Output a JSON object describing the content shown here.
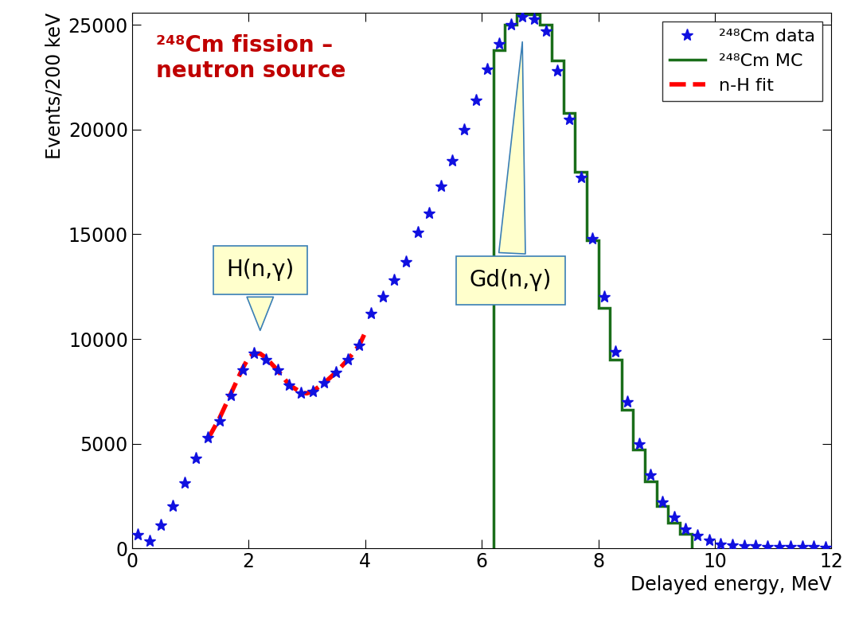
{
  "chart_data": {
    "type": "scatter",
    "title": "²⁴⁸Cm fission –\nneutron source",
    "x_label": "Delayed energy, MeV",
    "y_label": "Events/200 keV",
    "annotations": [
      "H(n,γ)",
      "Gd(n,γ)"
    ],
    "xlim": [
      0,
      12
    ],
    "ylim": [
      0,
      25600
    ],
    "xticks": [
      0,
      2,
      4,
      6,
      8,
      10,
      12
    ],
    "yticks": [
      0,
      5000,
      10000,
      15000,
      20000,
      25000
    ],
    "legend": "upper right",
    "series": [
      {
        "name": "²⁴⁸Cm data",
        "type": "scatter",
        "marker": "star",
        "color": "#1010e0",
        "x": [
          0.1,
          0.3,
          0.5,
          0.7,
          0.9,
          1.1,
          1.3,
          1.5,
          1.7,
          1.9,
          2.1,
          2.3,
          2.5,
          2.7,
          2.9,
          3.1,
          3.3,
          3.5,
          3.7,
          3.9,
          4.1,
          4.3,
          4.5,
          4.7,
          4.9,
          5.1,
          5.3,
          5.5,
          5.7,
          5.9,
          6.1,
          6.3,
          6.5,
          6.7,
          6.9,
          7.1,
          7.3,
          7.5,
          7.7,
          7.9,
          8.1,
          8.3,
          8.5,
          8.7,
          8.9,
          9.1,
          9.3,
          9.5,
          9.7,
          9.9,
          10.1,
          10.3,
          10.5,
          10.7,
          10.9,
          11.1,
          11.3,
          11.5,
          11.7,
          11.9
        ],
        "values": [
          650,
          350,
          1100,
          2000,
          3100,
          4300,
          5300,
          6100,
          7300,
          8500,
          9300,
          9000,
          8500,
          7800,
          7400,
          7500,
          7900,
          8400,
          9000,
          9700,
          11200,
          12000,
          12800,
          13700,
          15100,
          16000,
          17300,
          18500,
          20000,
          21400,
          22900,
          24100,
          25000,
          25400,
          25300,
          24700,
          22800,
          20500,
          17700,
          14800,
          12000,
          9400,
          7000,
          5000,
          3500,
          2200,
          1500,
          900,
          600,
          400,
          200,
          150,
          120,
          100,
          90,
          80,
          70,
          60,
          60,
          50
        ]
      },
      {
        "name": "²⁴⁸Cm MC",
        "type": "step",
        "color": "#1a6e1a",
        "bins": [
          6.2,
          6.4,
          6.6,
          6.8,
          7.0,
          7.2,
          7.4,
          7.6,
          7.8,
          8.0,
          8.2,
          8.4,
          8.6,
          8.8,
          9.0,
          9.2,
          9.4,
          9.6
        ],
        "values": [
          23800,
          25000,
          25500,
          25500,
          25000,
          23300,
          20800,
          18000,
          14700,
          11500,
          9000,
          6600,
          4700,
          3200,
          2000,
          1200,
          700
        ]
      },
      {
        "name": "n-H fit",
        "type": "line",
        "line_style": "dashed",
        "color": "#ff0000",
        "x": [
          1.3,
          1.5,
          1.7,
          1.9,
          2.0,
          2.1,
          2.2,
          2.3,
          2.5,
          2.7,
          2.9,
          3.0,
          3.1,
          3.3,
          3.5,
          3.7,
          3.9,
          4.0
        ],
        "values": [
          5200,
          6200,
          7400,
          8600,
          9100,
          9300,
          9300,
          9100,
          8500,
          7800,
          7450,
          7400,
          7500,
          7900,
          8400,
          9000,
          9700,
          10300
        ]
      }
    ]
  }
}
